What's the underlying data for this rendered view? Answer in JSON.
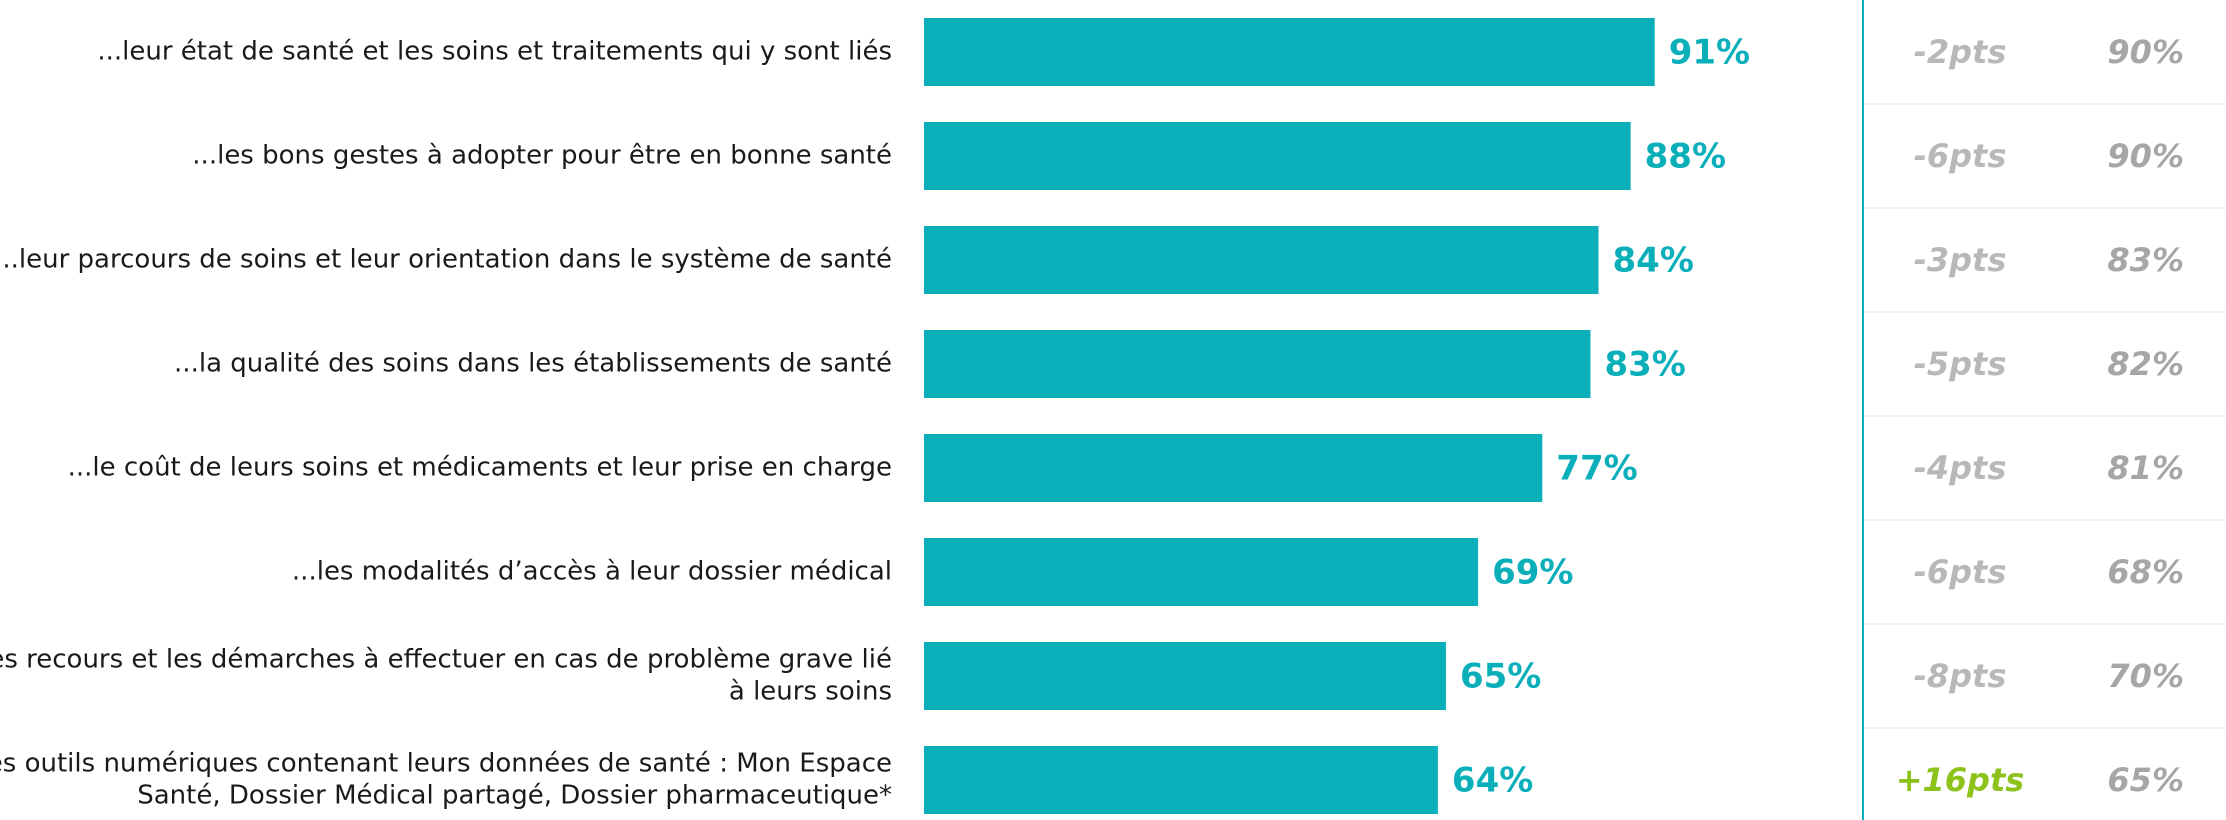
{
  "chart_data": {
    "type": "bar",
    "orientation": "horizontal",
    "color": "#0bafba",
    "xlim": [
      0,
      100
    ],
    "categories": [
      [
        "...leur état de santé et les soins et traitements qui y sont liés"
      ],
      [
        "...les bons gestes à adopter pour être en bonne santé"
      ],
      [
        "...leur parcours de soins et leur orientation dans le système de santé"
      ],
      [
        "...la qualité des soins dans les établissements de santé"
      ],
      [
        "...le coût de leurs soins et médicaments et leur prise en charge"
      ],
      [
        "...les modalités d’accès à leur dossier médical"
      ],
      [
        "...les recours et les démarches à effectuer en cas de problème grave lié",
        "à leurs soins"
      ],
      [
        "...les outils numériques contenant leurs données de santé : Mon Espace",
        "Santé, Dossier Médical partagé, Dossier pharmaceutique*"
      ]
    ],
    "values": [
      91,
      88,
      84,
      83,
      77,
      69,
      65,
      64
    ],
    "value_labels": [
      "91%",
      "88%",
      "84%",
      "83%",
      "77%",
      "69%",
      "65%",
      "64%"
    ],
    "evolution": [
      {
        "label": "-2pts",
        "color": "#b8b8b8"
      },
      {
        "label": "-6pts",
        "color": "#b8b8b8"
      },
      {
        "label": "-3pts",
        "color": "#b8b8b8"
      },
      {
        "label": "-5pts",
        "color": "#b8b8b8"
      },
      {
        "label": "-4pts",
        "color": "#b8b8b8"
      },
      {
        "label": "-6pts",
        "color": "#b8b8b8"
      },
      {
        "label": "-8pts",
        "color": "#b8b8b8"
      },
      {
        "label": "+16pts",
        "color": "#8cc21a"
      }
    ],
    "previous": [
      "90%",
      "90%",
      "83%",
      "82%",
      "81%",
      "68%",
      "70%",
      "65%"
    ]
  }
}
